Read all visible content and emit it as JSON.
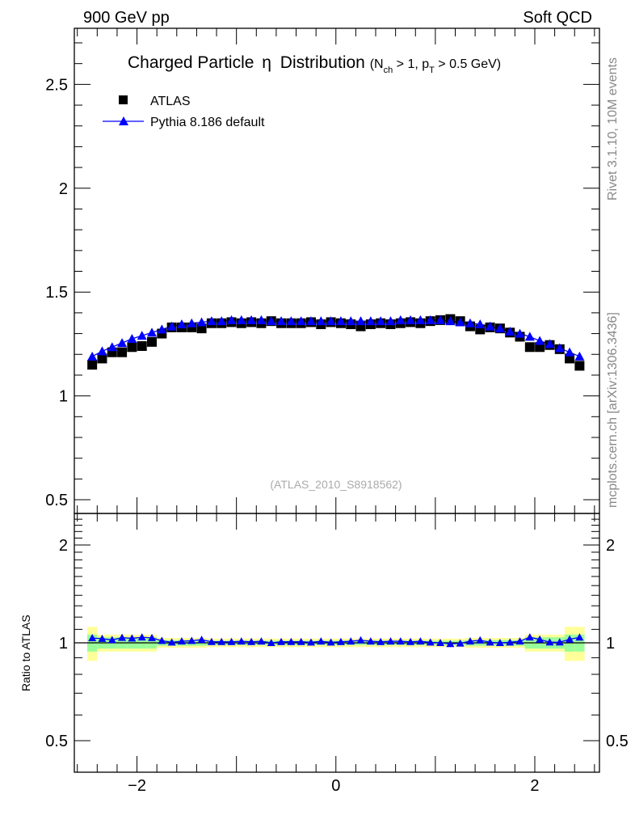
{
  "header": {
    "left": "900 GeV pp",
    "right": "Soft QCD"
  },
  "side": {
    "rivet": "Rivet 3.1.10,  10M events",
    "mcplots": "mcplots.cern.ch [arXiv:1306.3436]"
  },
  "watermark": "(ATLAS_2010_S8918562)",
  "chart_data": [
    {
      "type": "scatter",
      "title": "Charged Particle η Distribution",
      "subtitle": "(N_ch > 1, p_T > 0.5 GeV)",
      "title_main": "Charged Particle",
      "title_eta": "η",
      "title_dist": "Distribution",
      "sub_a": "(N",
      "sub_ch": "ch",
      "sub_b": " > 1, p",
      "sub_T": "T",
      "sub_c": " > 0.5 GeV)",
      "xlim": [
        -2.63,
        2.65
      ],
      "ylim": [
        0.434,
        2.77
      ],
      "yticks": [
        "0.5",
        "1",
        "1.5",
        "2",
        "2.5"
      ],
      "legend_placement": "top-left",
      "x": [
        -2.45,
        -2.35,
        -2.25,
        -2.15,
        -2.05,
        -1.95,
        -1.85,
        -1.75,
        -1.65,
        -1.55,
        -1.45,
        -1.35,
        -1.25,
        -1.15,
        -1.05,
        -0.95,
        -0.85,
        -0.75,
        -0.65,
        -0.55,
        -0.45,
        -0.35,
        -0.25,
        -0.15,
        -0.05,
        0.05,
        0.15,
        0.25,
        0.35,
        0.45,
        0.55,
        0.65,
        0.75,
        0.85,
        0.95,
        1.05,
        1.15,
        1.25,
        1.35,
        1.45,
        1.55,
        1.65,
        1.75,
        1.85,
        1.95,
        2.05,
        2.15,
        2.25,
        2.35,
        2.45
      ],
      "series": [
        {
          "name": "ATLAS",
          "color": "#000000",
          "marker": "square",
          "values": [
            1.15,
            1.18,
            1.21,
            1.21,
            1.235,
            1.24,
            1.26,
            1.3,
            1.33,
            1.33,
            1.33,
            1.325,
            1.35,
            1.35,
            1.355,
            1.35,
            1.355,
            1.35,
            1.36,
            1.35,
            1.35,
            1.35,
            1.355,
            1.345,
            1.355,
            1.35,
            1.345,
            1.335,
            1.345,
            1.35,
            1.345,
            1.35,
            1.355,
            1.35,
            1.36,
            1.365,
            1.37,
            1.36,
            1.335,
            1.32,
            1.33,
            1.325,
            1.305,
            1.285,
            1.235,
            1.235,
            1.245,
            1.225,
            1.18,
            1.145
          ]
        },
        {
          "name": "Pythia 8.186 default",
          "color": "#0000ff",
          "marker": "triangle",
          "values": [
            1.19,
            1.215,
            1.235,
            1.255,
            1.275,
            1.29,
            1.305,
            1.32,
            1.335,
            1.345,
            1.35,
            1.355,
            1.36,
            1.36,
            1.365,
            1.365,
            1.365,
            1.365,
            1.36,
            1.36,
            1.36,
            1.36,
            1.36,
            1.36,
            1.36,
            1.36,
            1.36,
            1.36,
            1.36,
            1.36,
            1.36,
            1.365,
            1.365,
            1.365,
            1.365,
            1.365,
            1.36,
            1.355,
            1.35,
            1.345,
            1.335,
            1.325,
            1.31,
            1.3,
            1.285,
            1.265,
            1.25,
            1.23,
            1.21,
            1.19
          ]
        }
      ]
    },
    {
      "type": "scatter",
      "ylabel": "Ratio to ATLAS",
      "yscale": "log",
      "ylim": [
        0.4,
        2.5
      ],
      "yticks": [
        "0.5",
        "1",
        "2"
      ],
      "xticks": [
        "−2",
        "0",
        "2"
      ],
      "xtick_values": [
        -2,
        0,
        2
      ],
      "band_total_rel_err": [
        0.12,
        0.06,
        0.06,
        0.06,
        0.06,
        0.06,
        0.06,
        0.035,
        0.035,
        0.035,
        0.035,
        0.035,
        0.03,
        0.03,
        0.03,
        0.03,
        0.03,
        0.03,
        0.03,
        0.03,
        0.03,
        0.03,
        0.03,
        0.03,
        0.03,
        0.03,
        0.03,
        0.03,
        0.03,
        0.03,
        0.03,
        0.03,
        0.03,
        0.03,
        0.03,
        0.03,
        0.03,
        0.03,
        0.035,
        0.035,
        0.035,
        0.035,
        0.035,
        0.035,
        0.06,
        0.06,
        0.06,
        0.06,
        0.12,
        0.12
      ],
      "band_stat_rel_err": [
        0.06,
        0.04,
        0.04,
        0.04,
        0.04,
        0.04,
        0.04,
        0.02,
        0.02,
        0.02,
        0.02,
        0.02,
        0.015,
        0.015,
        0.015,
        0.015,
        0.015,
        0.015,
        0.015,
        0.015,
        0.015,
        0.015,
        0.015,
        0.015,
        0.015,
        0.015,
        0.015,
        0.015,
        0.015,
        0.015,
        0.015,
        0.015,
        0.015,
        0.015,
        0.015,
        0.015,
        0.015,
        0.015,
        0.02,
        0.02,
        0.02,
        0.02,
        0.02,
        0.02,
        0.04,
        0.04,
        0.04,
        0.04,
        0.06,
        0.06
      ],
      "band_colors": {
        "total": "#ffff99",
        "stat": "#99ff99"
      }
    }
  ]
}
